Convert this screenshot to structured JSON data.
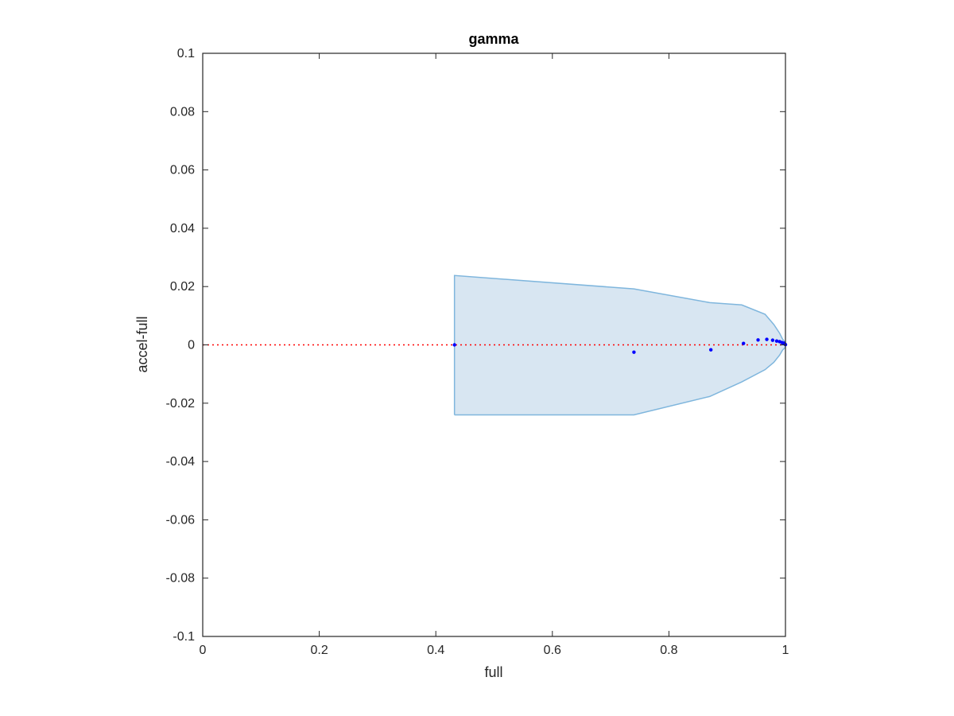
{
  "chart_data": {
    "type": "scatter",
    "title": "gamma",
    "xlabel": "full",
    "ylabel": "accel-full",
    "xlim": [
      0,
      1
    ],
    "ylim": [
      -0.1,
      0.1
    ],
    "x_ticks": [
      "0",
      "0.2",
      "0.4",
      "0.6",
      "0.8",
      "1"
    ],
    "x_tick_values": [
      0,
      0.2,
      0.4,
      0.6,
      0.8,
      1
    ],
    "y_ticks": [
      "0.1",
      "0.08",
      "0.06",
      "0.04",
      "0.02",
      "0",
      "-0.02",
      "-0.04",
      "-0.06",
      "-0.08",
      "-0.1"
    ],
    "y_tick_values": [
      0.1,
      0.08,
      0.06,
      0.04,
      0.02,
      0,
      -0.02,
      -0.04,
      -0.06,
      -0.08,
      -0.1
    ],
    "grid": false,
    "reference_line": {
      "y": 0,
      "color": "#ff0000",
      "style": "dotted"
    },
    "band": {
      "color": "#d8e6f2",
      "edge_color": "#7fb6dd",
      "x": [
        0.432,
        0.74,
        0.87,
        0.925,
        0.965,
        0.98,
        0.99,
        0.995,
        1.0
      ],
      "upper": [
        0.0238,
        0.0192,
        0.0145,
        0.0137,
        0.0105,
        0.007,
        0.004,
        0.002,
        0.0008
      ],
      "lower": [
        -0.024,
        -0.024,
        -0.0177,
        -0.0127,
        -0.0085,
        -0.006,
        -0.0035,
        -0.0018,
        -0.0008
      ]
    },
    "points": {
      "color": "#0000ff",
      "x": [
        0.432,
        0.74,
        0.872,
        0.928,
        0.953,
        0.968,
        0.978,
        0.985,
        0.99,
        0.994,
        0.997,
        0.999,
        1.0
      ],
      "y": [
        0.0,
        -0.0025,
        -0.0017,
        0.0005,
        0.0017,
        0.0019,
        0.0016,
        0.0013,
        0.0011,
        0.0008,
        0.0006,
        0.0003,
        0.0001
      ]
    }
  }
}
